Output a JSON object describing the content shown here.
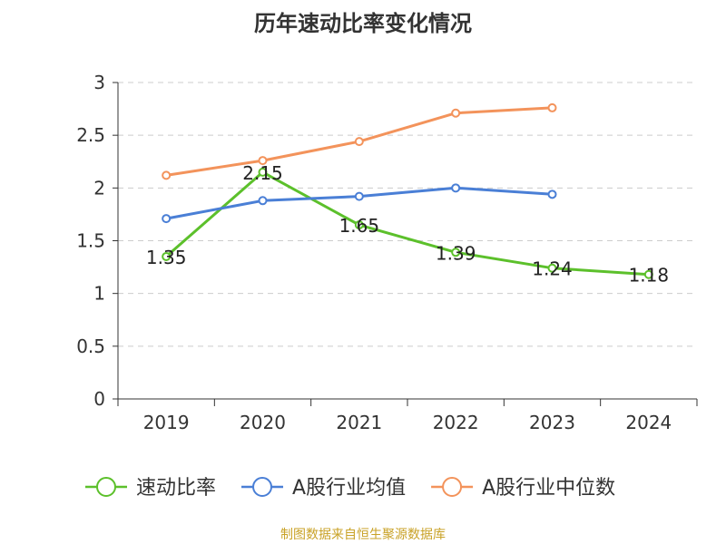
{
  "chart_data": {
    "type": "line",
    "title": "历年速动比率变化情况",
    "categories": [
      "2019",
      "2020",
      "2021",
      "2022",
      "2023",
      "2024"
    ],
    "ylim": [
      0,
      3
    ],
    "yticks": [
      "0",
      "0.5",
      "1",
      "1.5",
      "2",
      "2.5",
      "3"
    ],
    "grid": true,
    "legend_position": "bottom",
    "series": [
      {
        "name": "速动比率",
        "color": "#5cc02b",
        "values": [
          1.35,
          2.15,
          1.65,
          1.39,
          1.24,
          1.18
        ],
        "labels": [
          "1.35",
          "2.15",
          "1.65",
          "1.39",
          "1.24",
          "1.18"
        ]
      },
      {
        "name": "A股行业均值",
        "color": "#4a7fd6",
        "values": [
          1.71,
          1.88,
          1.92,
          2.0,
          1.94,
          null
        ]
      },
      {
        "name": "A股行业中位数",
        "color": "#f3935b",
        "values": [
          2.12,
          2.26,
          2.44,
          2.71,
          2.76,
          null
        ]
      }
    ]
  },
  "footer": {
    "source": "制图数据来自恒生聚源数据库"
  }
}
